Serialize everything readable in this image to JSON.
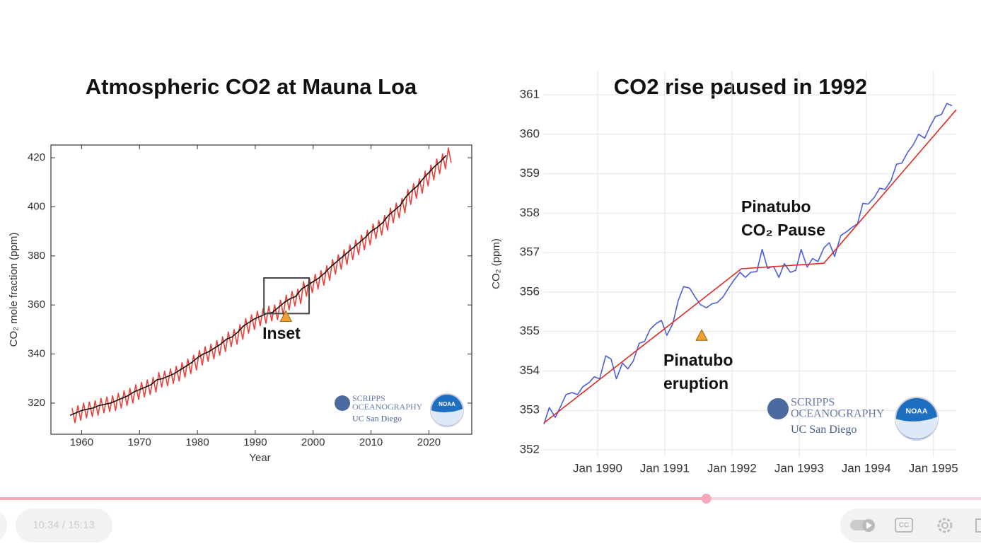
{
  "chart_data": [
    {
      "type": "line",
      "title": "Atmospheric CO2 at Mauna Loa",
      "xlabel": "Year",
      "ylabel": "CO₂ mole fraction (ppm)",
      "xlim": [
        1954.7,
        2027.4
      ],
      "ylim": [
        307.3,
        425.2
      ],
      "xticks": [
        1960,
        1970,
        1980,
        1990,
        2000,
        2010,
        2020
      ],
      "yticks": [
        320,
        340,
        360,
        380,
        400,
        420
      ],
      "grid": false,
      "series": [
        {
          "color": "#e8413a",
          "x": [
            1958.35,
            1958.85,
            1959.35,
            1959.85,
            1960.35,
            1960.85,
            1961.35,
            1961.85,
            1962.35,
            1962.85,
            1963.35,
            1963.85,
            1964.35,
            1964.85,
            1965.35,
            1965.85,
            1966.35,
            1966.85,
            1967.35,
            1967.85,
            1968.35,
            1968.85,
            1969.35,
            1969.85,
            1970.35,
            1970.85,
            1971.35,
            1971.85,
            1972.35,
            1972.85,
            1973.35,
            1973.85,
            1974.35,
            1974.85,
            1975.35,
            1975.85,
            1976.35,
            1976.85,
            1977.35,
            1977.85,
            1978.35,
            1978.85,
            1979.35,
            1979.85,
            1980.35,
            1980.85,
            1981.35,
            1981.85,
            1982.35,
            1982.85,
            1983.35,
            1983.85,
            1984.35,
            1984.85,
            1985.35,
            1985.85,
            1986.35,
            1986.85,
            1987.35,
            1987.85,
            1988.35,
            1988.85,
            1989.35,
            1989.85,
            1990.35,
            1990.85,
            1991.35,
            1991.85,
            1992.35,
            1992.85,
            1993.35,
            1993.85,
            1994.35,
            1994.85,
            1995.35,
            1995.85,
            1996.35,
            1996.85,
            1997.35,
            1997.85,
            1998.35,
            1998.85,
            1999.35,
            1999.85,
            2000.35,
            2000.85,
            2001.35,
            2001.85,
            2002.35,
            2002.85,
            2003.35,
            2003.85,
            2004.35,
            2004.85,
            2005.35,
            2005.85,
            2006.35,
            2006.85,
            2007.35,
            2007.85,
            2008.35,
            2008.85,
            2009.35,
            2009.85,
            2010.35,
            2010.85,
            2011.35,
            2011.85,
            2012.35,
            2012.85,
            2013.35,
            2013.85,
            2014.35,
            2014.85,
            2015.35,
            2015.85,
            2016.35,
            2016.85,
            2017.35,
            2017.85,
            2018.35,
            2018.85,
            2019.35,
            2019.85,
            2020.35,
            2020.85,
            2021.35,
            2021.85,
            2022.35,
            2022.85,
            2023.35,
            2023.85
          ],
          "values": [
            318,
            312,
            319,
            313,
            320,
            314,
            320.5,
            314.5,
            321,
            315,
            322,
            316,
            322.5,
            316.5,
            323,
            317,
            324,
            318,
            325,
            319,
            326,
            320,
            327.5,
            321.5,
            328.5,
            322.5,
            329.5,
            323.5,
            330.5,
            324.5,
            332.5,
            326.5,
            333,
            327,
            334,
            328,
            335,
            329,
            336.5,
            330.5,
            338,
            332,
            339.5,
            333.5,
            341.5,
            335.5,
            343,
            337,
            344,
            338,
            345.5,
            339.5,
            347,
            341,
            349,
            343,
            350,
            344,
            352,
            346,
            354.5,
            348.5,
            356,
            350,
            357.5,
            351.5,
            358.5,
            352.5,
            359.5,
            353.5,
            360,
            354,
            362,
            356,
            364,
            358,
            365.5,
            359.5,
            366.5,
            360.5,
            369.5,
            363.5,
            371,
            365,
            372.5,
            366.5,
            374,
            368,
            376,
            370,
            378.5,
            372.5,
            380.5,
            374.5,
            382.5,
            376.5,
            384.5,
            378.5,
            386.5,
            380.5,
            388.5,
            382.5,
            390.5,
            384.5,
            393,
            387,
            394.5,
            388.5,
            396.5,
            390.5,
            399.5,
            393.5,
            401.5,
            395.5,
            403.5,
            397.5,
            407,
            401,
            409.5,
            403.5,
            411.5,
            405.5,
            414.5,
            408.5,
            417,
            411,
            419.5,
            413.5,
            421.5,
            415.5,
            424,
            418
          ]
        },
        {
          "color": "#111111",
          "x": [
            1958,
            1959,
            1960,
            1961,
            1962,
            1963,
            1964,
            1965,
            1966,
            1967,
            1968,
            1969,
            1970,
            1971,
            1972,
            1973,
            1974,
            1975,
            1976,
            1977,
            1978,
            1979,
            1980,
            1981,
            1982,
            1983,
            1984,
            1985,
            1986,
            1987,
            1988,
            1989,
            1990,
            1991,
            1992,
            1993,
            1994,
            1995,
            1996,
            1997,
            1998,
            1999,
            2000,
            2001,
            2002,
            2003,
            2004,
            2005,
            2006,
            2007,
            2008,
            2009,
            2010,
            2011,
            2012,
            2013,
            2014,
            2015,
            2016,
            2017,
            2018,
            2019,
            2020,
            2021,
            2022,
            2023
          ],
          "values": [
            315,
            316,
            317,
            317.5,
            318,
            319,
            319.5,
            320,
            321,
            322,
            323,
            324.5,
            325.5,
            326.5,
            327.5,
            329.5,
            330,
            331,
            332,
            333.5,
            335,
            336.5,
            338.5,
            340,
            341,
            342.5,
            344,
            346,
            347,
            349,
            351.5,
            353,
            354.5,
            355.5,
            356.5,
            357,
            359,
            361,
            362.5,
            363.5,
            366.5,
            368,
            369.5,
            371,
            373,
            375.5,
            377.5,
            379.5,
            381.5,
            383.5,
            385.5,
            387.5,
            390,
            391.5,
            393.5,
            396.5,
            398.5,
            400.5,
            404,
            406.5,
            408.5,
            411.5,
            414,
            416.5,
            418.5,
            421
          ]
        }
      ],
      "inset_box": {
        "xlim": [
          1991.5,
          1999.3
        ],
        "ylim": [
          356.5,
          371
        ]
      },
      "marker": {
        "x": 1995.3,
        "y": 355.3,
        "color": "#f0a030"
      },
      "annotation": [
        "Inset"
      ],
      "logo": {
        "name": [
          "SCRIPPS",
          "OCEANOGRAPHY"
        ],
        "university": "UC San Diego",
        "agency": "NOAA"
      }
    },
    {
      "type": "line",
      "title": "CO2 rise paused in 1992",
      "ylabel": "CO₂ (ppm)",
      "xlim": [
        1989.2,
        1995.34
      ],
      "ylim": [
        351.82,
        361.61
      ],
      "xticks": [
        {
          "value": 1990,
          "label": "Jan 1990"
        },
        {
          "value": 1991,
          "label": "Jan 1991"
        },
        {
          "value": 1992,
          "label": "Jan 1992"
        },
        {
          "value": 1993,
          "label": "Jan 1993"
        },
        {
          "value": 1994,
          "label": "Jan 1994"
        },
        {
          "value": 1995,
          "label": "Jan 1995"
        }
      ],
      "yticks": [
        352,
        353,
        354,
        355,
        356,
        357,
        358,
        359,
        360,
        361
      ],
      "grid": true,
      "series": [
        {
          "color": "#4a5de0",
          "x": [
            1989.2,
            1989.28,
            1989.37,
            1989.45,
            1989.53,
            1989.62,
            1989.7,
            1989.78,
            1989.87,
            1989.95,
            1990.03,
            1990.12,
            1990.2,
            1990.28,
            1990.37,
            1990.45,
            1990.53,
            1990.62,
            1990.7,
            1990.78,
            1990.87,
            1990.95,
            1991.03,
            1991.12,
            1991.2,
            1991.28,
            1991.37,
            1991.45,
            1991.53,
            1991.62,
            1991.7,
            1991.78,
            1991.87,
            1991.95,
            1992.03,
            1992.12,
            1992.2,
            1992.28,
            1992.37,
            1992.45,
            1992.53,
            1992.62,
            1992.7,
            1992.78,
            1992.87,
            1992.95,
            1993.03,
            1993.12,
            1993.2,
            1993.28,
            1993.37,
            1993.45,
            1993.53,
            1993.62,
            1993.7,
            1993.78,
            1993.87,
            1993.95,
            1994.03,
            1994.12,
            1994.2,
            1994.28,
            1994.37,
            1994.45,
            1994.53,
            1994.62,
            1994.7,
            1994.78,
            1994.87,
            1994.95,
            1995.03,
            1995.12,
            1995.2,
            1995.28
          ],
          "values": [
            352.65,
            353.07,
            352.82,
            353.1,
            353.4,
            353.45,
            353.4,
            353.6,
            353.7,
            353.85,
            353.8,
            354.38,
            354.3,
            353.8,
            354.2,
            354.05,
            354.25,
            354.7,
            354.75,
            355.05,
            355.2,
            355.28,
            354.9,
            355.2,
            355.78,
            356.14,
            356.1,
            355.88,
            355.68,
            355.6,
            355.7,
            355.73,
            355.88,
            356.1,
            356.3,
            356.5,
            356.37,
            356.5,
            356.52,
            357.08,
            356.6,
            356.65,
            356.37,
            356.72,
            356.5,
            356.55,
            357.08,
            356.63,
            356.85,
            356.77,
            357.12,
            357.25,
            356.9,
            357.43,
            357.52,
            357.63,
            357.73,
            358.25,
            358.23,
            358.4,
            358.63,
            358.6,
            358.83,
            359.24,
            359.27,
            359.55,
            359.73,
            360.0,
            359.9,
            360.2,
            360.45,
            360.5,
            360.78,
            360.72
          ]
        },
        {
          "color": "#e02a20",
          "x": [
            1989.2,
            1992.14,
            1993.37,
            1995.34
          ],
          "values": [
            352.68,
            356.59,
            356.73,
            360.62
          ]
        }
      ],
      "marker": {
        "x": 1991.55,
        "y": 354.9,
        "color": "#f0a030"
      },
      "annotation": [
        "Pinatubo",
        "eruption"
      ],
      "annotation2": [
        "Pinatubo",
        "CO₂ Pause"
      ],
      "logo": {
        "name": [
          "SCRIPPS",
          "OCEANOGRAPHY"
        ],
        "university": "UC San Diego",
        "agency": "NOAA"
      }
    }
  ],
  "player": {
    "time": "10:34 / 15:13",
    "progress_percent": 72
  }
}
